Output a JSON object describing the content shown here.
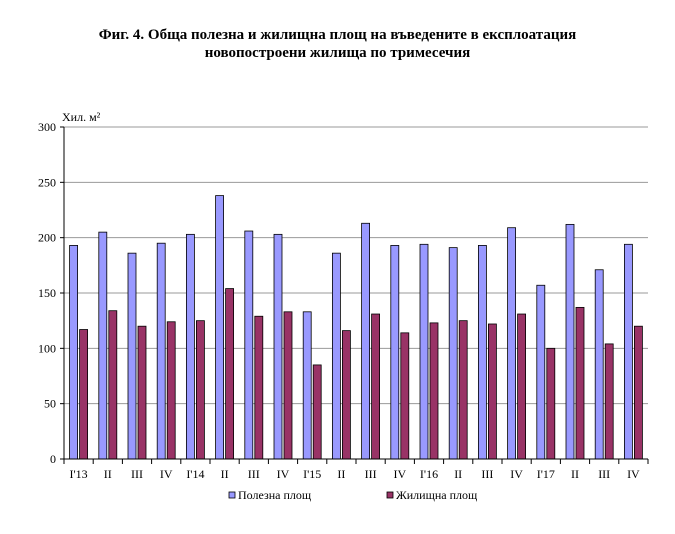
{
  "title_line1": "Фиг. 4. Обща полезна и жилищна площ на въведените в експлоатация",
  "title_line2": "новопостроени жилища по тримесечия",
  "colors": {
    "useful": "#9999FF",
    "living": "#993366",
    "grid": "#999999",
    "axis": "#000000"
  },
  "chart_data": {
    "type": "bar",
    "ylabel": "Хил. м²",
    "ylim": [
      0,
      300
    ],
    "yticks": [
      0,
      50,
      100,
      150,
      200,
      250,
      300
    ],
    "grid": true,
    "legend_position": "bottom",
    "categories": [
      "I'13",
      "II",
      "III",
      "IV",
      "I'14",
      "II",
      "III",
      "IV",
      "I'15",
      "II",
      "III",
      "IV",
      "I'16",
      "II",
      "III",
      "IV",
      "I'17",
      "II",
      "III",
      "IV"
    ],
    "series": [
      {
        "name": "Полезна площ",
        "values": [
          193,
          205,
          186,
          195,
          203,
          238,
          206,
          203,
          133,
          186,
          213,
          193,
          194,
          191,
          193,
          209,
          157,
          212,
          171,
          194
        ]
      },
      {
        "name": "Жилищна площ",
        "values": [
          117,
          134,
          120,
          124,
          125,
          154,
          129,
          133,
          85,
          116,
          131,
          114,
          123,
          125,
          122,
          131,
          100,
          137,
          104,
          120
        ]
      }
    ]
  }
}
